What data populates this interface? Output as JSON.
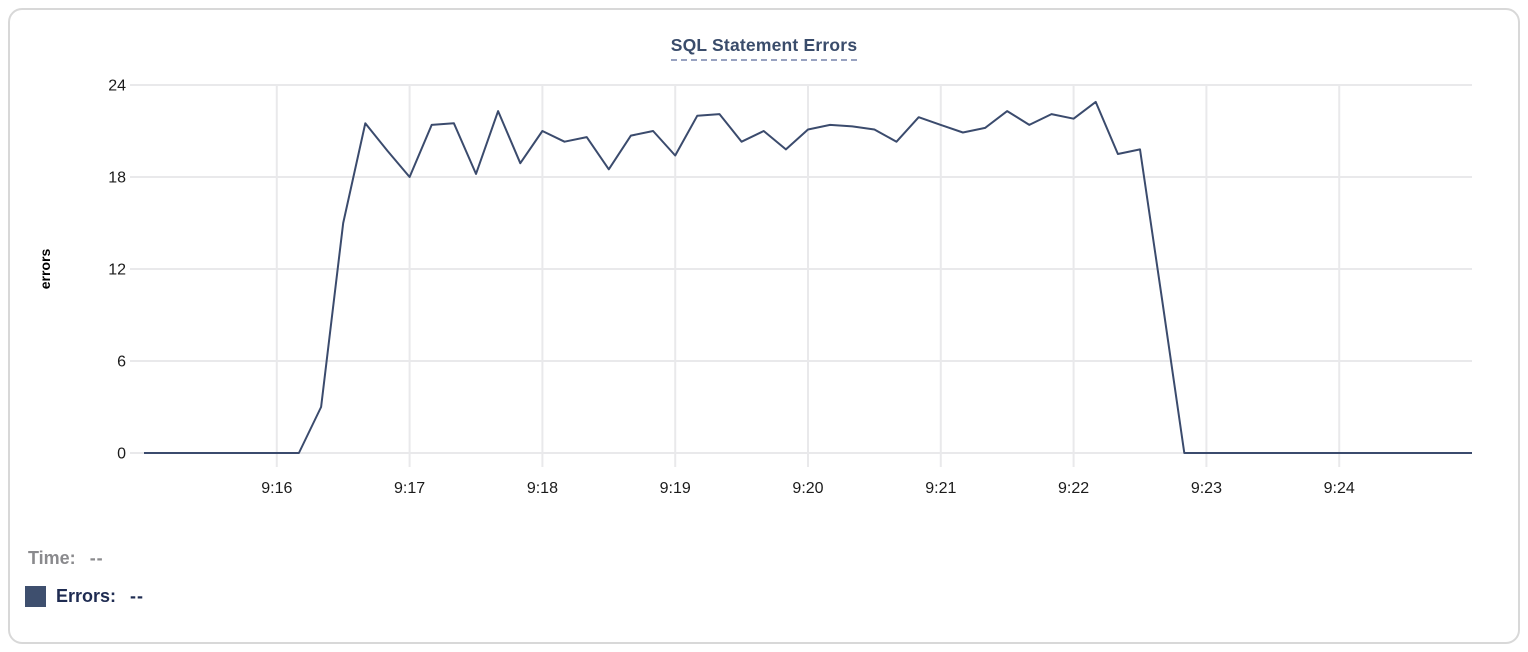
{
  "chart_data": {
    "type": "line",
    "title": "SQL Statement Errors",
    "xlabel": "",
    "ylabel": "errors",
    "ylim": [
      0,
      24
    ],
    "y_ticks": [
      0,
      6,
      12,
      18,
      24
    ],
    "x_ticks": [
      "9:16",
      "9:17",
      "9:18",
      "9:19",
      "9:20",
      "9:21",
      "9:22",
      "9:23",
      "9:24"
    ],
    "x_domain": [
      "9:15:00",
      "9:25:00"
    ],
    "grid": true,
    "markers": false,
    "legend_position": "below-as-tooltip-readout",
    "series": [
      {
        "name": "Errors",
        "color": "#3b4b6d",
        "x": [
          "9:15:00",
          "9:15:10",
          "9:15:20",
          "9:15:30",
          "9:15:40",
          "9:15:50",
          "9:16:00",
          "9:16:10",
          "9:16:20",
          "9:16:30",
          "9:16:40",
          "9:16:50",
          "9:17:00",
          "9:17:10",
          "9:17:20",
          "9:17:30",
          "9:17:40",
          "9:17:50",
          "9:18:00",
          "9:18:10",
          "9:18:20",
          "9:18:30",
          "9:18:40",
          "9:18:50",
          "9:19:00",
          "9:19:10",
          "9:19:20",
          "9:19:30",
          "9:19:40",
          "9:19:50",
          "9:20:00",
          "9:20:10",
          "9:20:20",
          "9:20:30",
          "9:20:40",
          "9:20:50",
          "9:21:00",
          "9:21:10",
          "9:21:20",
          "9:21:30",
          "9:21:40",
          "9:21:50",
          "9:22:00",
          "9:22:10",
          "9:22:20",
          "9:22:30",
          "9:22:40",
          "9:22:50",
          "9:23:00",
          "9:23:10",
          "9:23:20",
          "9:23:30",
          "9:23:40",
          "9:23:50",
          "9:24:00",
          "9:24:10",
          "9:24:20",
          "9:24:30",
          "9:24:40",
          "9:24:50",
          "9:25:00"
        ],
        "values": [
          0,
          0,
          0,
          0,
          0,
          0,
          0,
          0,
          3,
          15,
          21.5,
          19.7,
          18,
          21.4,
          21.5,
          18.2,
          22.3,
          18.9,
          21,
          20.3,
          20.6,
          18.5,
          20.7,
          21,
          19.4,
          22,
          22.1,
          20.3,
          21,
          19.8,
          21.1,
          21.4,
          21.3,
          21.1,
          20.3,
          21.9,
          21.4,
          20.9,
          21.2,
          22.3,
          21.4,
          22.1,
          21.8,
          22.9,
          19.5,
          19.8,
          10,
          0,
          0,
          0,
          0,
          0,
          0,
          0,
          0,
          0,
          0,
          0,
          0,
          0,
          0
        ]
      }
    ]
  },
  "tooltip": {
    "time_label": "Time:",
    "time_value": "--",
    "errors_label": "Errors:",
    "errors_value": "--"
  },
  "colors": {
    "line": "#3b4b6d",
    "swatch": "#3e4f6e",
    "title": "#3a4c6b",
    "title_underline": "#98a2c0",
    "grid": "#e9e9eb",
    "tick_label": "#1b1b1b",
    "axis_title": "#000000",
    "time_text": "#8a8a8d",
    "errors_text": "#1f2c52",
    "card_border": "#d8d8d8"
  }
}
